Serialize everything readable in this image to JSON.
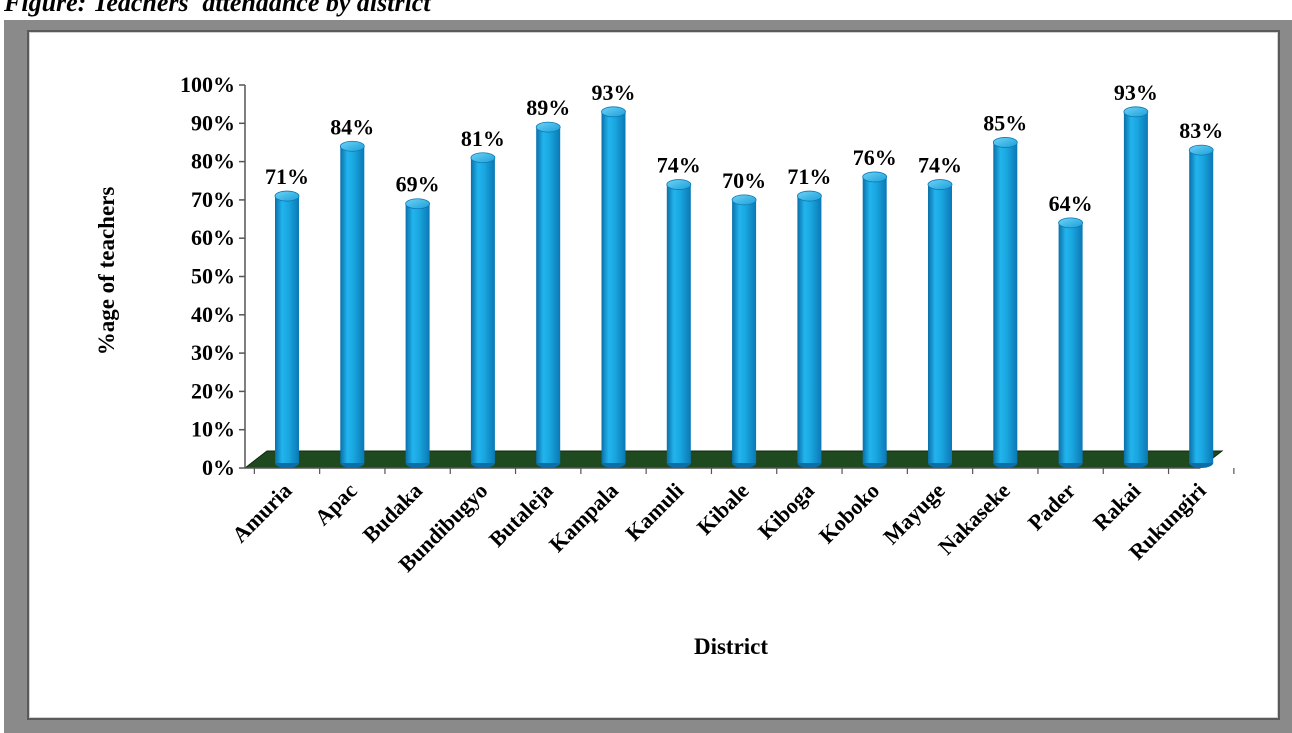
{
  "caption": "Figure: Teachers' attendance by district",
  "chart_data": {
    "type": "bar",
    "xlabel": "District",
    "ylabel": "%age of teachers",
    "ylim": [
      0,
      100
    ],
    "y_ticks": [
      "0%",
      "10%",
      "20%",
      "30%",
      "40%",
      "50%",
      "60%",
      "70%",
      "80%",
      "90%",
      "100%"
    ],
    "categories": [
      "Amuria",
      "Apac",
      "Budaka",
      "Bundibugyo",
      "Butaleja",
      "Kampala",
      "Kamuli",
      "Kibale",
      "Kiboga",
      "Koboko",
      "Mayuge",
      "Nakaseke",
      "Pader",
      "Rakai",
      "Rukungiri"
    ],
    "values": [
      71,
      84,
      69,
      81,
      89,
      93,
      74,
      70,
      71,
      76,
      74,
      85,
      64,
      93,
      83
    ],
    "data_labels": [
      "71%",
      "84%",
      "69%",
      "81%",
      "89%",
      "93%",
      "74%",
      "70%",
      "71%",
      "76%",
      "74%",
      "85%",
      "64%",
      "93%",
      "83%"
    ],
    "bar_color": "#1aa7e0",
    "floor_color": "#1f4a1f",
    "grid": false,
    "style": "3d-cylinder"
  }
}
